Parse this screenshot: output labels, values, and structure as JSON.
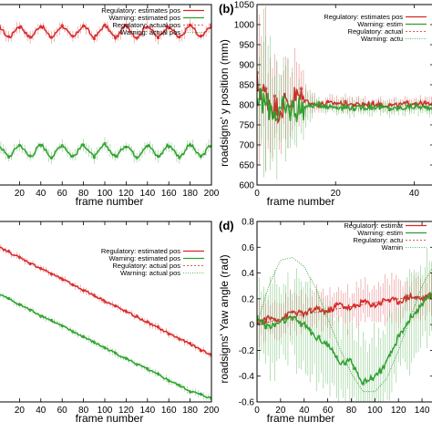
{
  "chart_data": [
    {
      "type": "line",
      "panel": "a",
      "panel_label": "",
      "xlabel": "frame number",
      "ylabel": "",
      "xlim": [
        0,
        200
      ],
      "x_ticks": [
        "20",
        "40",
        "60",
        "80",
        "100",
        "120",
        "140",
        "160",
        "180",
        "200"
      ],
      "y_ticks": [],
      "legend": [
        "Regulatory: estimates pos",
        "Warning: estimated pos",
        "Regulatory: actual pos",
        "Warning: actual pos"
      ],
      "series": [
        {
          "name": "Regulatory: estimates pos",
          "x": [
            0,
            20,
            40,
            60,
            80,
            100,
            120,
            140,
            160,
            180,
            200
          ],
          "values": [
            0.88,
            0.82,
            0.88,
            0.82,
            0.88,
            0.82,
            0.88,
            0.82,
            0.88,
            0.82,
            0.88
          ]
        },
        {
          "name": "Warning: estimated pos",
          "x": [
            0,
            20,
            40,
            60,
            80,
            100,
            120,
            140,
            160,
            180,
            200
          ],
          "values": [
            0.22,
            0.16,
            0.22,
            0.16,
            0.22,
            0.16,
            0.22,
            0.16,
            0.22,
            0.16,
            0.22
          ]
        }
      ]
    },
    {
      "type": "line",
      "panel": "b",
      "panel_label": "(b)",
      "xlabel": "frame number",
      "ylabel": "roadsigns' y position (mm)",
      "xlim": [
        0,
        45
      ],
      "ylim": [
        600,
        1050
      ],
      "x_ticks": [
        "0",
        "20",
        "40"
      ],
      "y_ticks": [
        "600",
        "650",
        "700",
        "750",
        "800",
        "850",
        "900",
        "950",
        "1000",
        "1050"
      ],
      "legend": [
        "Regulatory: estimates pos",
        "Warning: estim",
        "Regulatory: actual",
        "Warning: actu"
      ],
      "series": [
        {
          "name": "Regulatory: estimates pos",
          "x": [
            0,
            5,
            10,
            15,
            20,
            25,
            30,
            35,
            40,
            45
          ],
          "values": [
            850,
            790,
            820,
            800,
            805,
            800,
            802,
            798,
            805,
            800
          ]
        },
        {
          "name": "Warning: estimated pos",
          "x": [
            0,
            5,
            10,
            15,
            20,
            25,
            30,
            35,
            40,
            45
          ],
          "values": [
            820,
            780,
            790,
            800,
            795,
            792,
            795,
            790,
            795,
            792
          ]
        }
      ]
    },
    {
      "type": "line",
      "panel": "c",
      "panel_label": "",
      "xlabel": "frame number",
      "ylabel": "",
      "xlim": [
        0,
        200
      ],
      "x_ticks": [
        "20",
        "40",
        "60",
        "80",
        "100",
        "120",
        "140",
        "160",
        "180",
        "200"
      ],
      "y_ticks": [],
      "legend": [
        "Regulatory: estimated pos",
        "Warning: estimated pos",
        "Regulatory: actual pos",
        "Warning: actual pos"
      ],
      "series": [
        {
          "name": "Regulatory: estimated pos",
          "x": [
            0,
            20,
            40,
            60,
            80,
            100,
            120,
            140,
            160,
            180,
            200
          ],
          "values": [
            0.86,
            0.8,
            0.74,
            0.68,
            0.62,
            0.56,
            0.5,
            0.44,
            0.38,
            0.32,
            0.26
          ]
        },
        {
          "name": "Warning: estimated pos",
          "x": [
            0,
            20,
            40,
            60,
            80,
            100,
            120,
            140,
            160,
            180,
            200
          ],
          "values": [
            0.6,
            0.54,
            0.48,
            0.42,
            0.36,
            0.3,
            0.24,
            0.18,
            0.12,
            0.06,
            0.02
          ]
        }
      ]
    },
    {
      "type": "line",
      "panel": "d",
      "panel_label": "(d)",
      "xlabel": "frame number",
      "ylabel": "roadsigns' Yaw angle (rad)",
      "xlim": [
        0,
        150
      ],
      "ylim": [
        -0.6,
        0.8
      ],
      "x_ticks": [
        "0",
        "20",
        "40",
        "60",
        "80",
        "100",
        "120",
        "140"
      ],
      "y_ticks": [
        "-0.6",
        "-0.4",
        "-0.2",
        "0",
        "0.2",
        "0.4",
        "0.6",
        "0.8"
      ],
      "legend": [
        "Regulatory: estimat",
        "Warning: estim",
        "Regulatory: actu",
        "Warnin"
      ],
      "series": [
        {
          "name": "Regulatory: estimated pos",
          "x": [
            0,
            10,
            20,
            30,
            40,
            50,
            60,
            70,
            80,
            90,
            100,
            110,
            120,
            130,
            140,
            150
          ],
          "values": [
            0.02,
            0.05,
            0.04,
            0.1,
            0.08,
            0.12,
            0.1,
            0.16,
            0.12,
            0.18,
            0.15,
            0.2,
            0.18,
            0.22,
            0.2,
            0.24
          ]
        },
        {
          "name": "Warning: estimated pos",
          "x": [
            0,
            10,
            20,
            30,
            40,
            50,
            60,
            70,
            80,
            90,
            100,
            110,
            120,
            130,
            140,
            150
          ],
          "values": [
            0.05,
            -0.02,
            0.02,
            0.05,
            0.0,
            -0.1,
            -0.15,
            -0.3,
            -0.28,
            -0.45,
            -0.4,
            -0.3,
            -0.1,
            0.05,
            0.15,
            0.25
          ]
        },
        {
          "name": "Regulatory: actual pos",
          "x": [
            0,
            20,
            40,
            60,
            80,
            100,
            120,
            140,
            150
          ],
          "values": [
            0.0,
            0.04,
            0.08,
            0.11,
            0.14,
            0.17,
            0.2,
            0.22,
            0.23
          ]
        },
        {
          "name": "Warning: actual pos",
          "x": [
            0,
            10,
            20,
            30,
            40,
            50,
            60,
            70,
            80,
            90,
            100,
            110,
            120,
            130,
            140,
            150
          ],
          "values": [
            0.0,
            0.3,
            0.5,
            0.52,
            0.45,
            0.28,
            0.05,
            -0.18,
            -0.38,
            -0.52,
            -0.52,
            -0.42,
            -0.2,
            0.05,
            0.3,
            0.46
          ]
        }
      ]
    }
  ]
}
